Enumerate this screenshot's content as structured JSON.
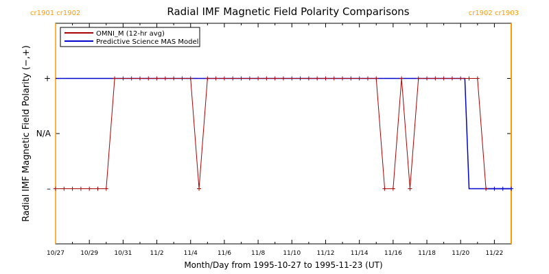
{
  "chart_data": {
    "type": "line",
    "title": "Radial IMF Magnetic Field Polarity Comparisons",
    "xlabel": "Month/Day from 1995-10-27 to 1995-11-23 (UT)",
    "ylabel": "Radial IMF Magnetic Field Polarity (−,+)",
    "x_start_date": "1995-10-27",
    "xlim_days": [
      0,
      27
    ],
    "x_tick_labels": [
      "10/27",
      "10/29",
      "10/31",
      "11/2",
      "11/4",
      "11/6",
      "11/8",
      "11/10",
      "11/12",
      "11/14",
      "11/16",
      "11/18",
      "11/20",
      "11/22"
    ],
    "y_tick_labels": [
      {
        "label": "+",
        "value": 1
      },
      {
        "label": "N/A",
        "value": 0
      },
      {
        "label": "–",
        "value": -1
      }
    ],
    "ylim": [
      -2,
      2
    ],
    "carrington_markers": [
      {
        "left_label": "cr1901",
        "right_label": "cr1902",
        "day": 0.0,
        "color": "#ff9900"
      },
      {
        "left_label": "cr1902",
        "right_label": "cr1903",
        "day": 27.0,
        "color": "#ff9900"
      }
    ],
    "legend_position": "top-left",
    "series": [
      {
        "name": "OMNI_M (12-hr avg)",
        "color": "#aa0000",
        "markers": true,
        "points": [
          [
            0.0,
            -1
          ],
          [
            0.5,
            -1
          ],
          [
            1.0,
            -1
          ],
          [
            1.5,
            -1
          ],
          [
            2.0,
            -1
          ],
          [
            2.5,
            -1
          ],
          [
            3.0,
            -1
          ],
          [
            3.5,
            1
          ],
          [
            4.0,
            1
          ],
          [
            4.5,
            1
          ],
          [
            5.0,
            1
          ],
          [
            5.5,
            1
          ],
          [
            6.0,
            1
          ],
          [
            6.5,
            1
          ],
          [
            7.0,
            1
          ],
          [
            7.5,
            1
          ],
          [
            8.0,
            1
          ],
          [
            8.5,
            -1
          ],
          [
            9.0,
            1
          ],
          [
            9.5,
            1
          ],
          [
            10.0,
            1
          ],
          [
            10.5,
            1
          ],
          [
            11.0,
            1
          ],
          [
            11.5,
            1
          ],
          [
            12.0,
            1
          ],
          [
            12.5,
            1
          ],
          [
            13.0,
            1
          ],
          [
            13.5,
            1
          ],
          [
            14.0,
            1
          ],
          [
            14.5,
            1
          ],
          [
            15.0,
            1
          ],
          [
            15.5,
            1
          ],
          [
            16.0,
            1
          ],
          [
            16.5,
            1
          ],
          [
            17.0,
            1
          ],
          [
            17.5,
            1
          ],
          [
            18.0,
            1
          ],
          [
            18.5,
            1
          ],
          [
            19.0,
            1
          ],
          [
            19.5,
            -1
          ],
          [
            20.0,
            -1
          ],
          [
            20.5,
            1
          ],
          [
            21.0,
            -1
          ],
          [
            21.5,
            1
          ],
          [
            22.0,
            1
          ],
          [
            22.5,
            1
          ],
          [
            23.0,
            1
          ],
          [
            23.5,
            1
          ],
          [
            24.0,
            1
          ],
          [
            24.5,
            1
          ],
          [
            25.0,
            1
          ],
          [
            25.5,
            -1
          ]
        ]
      },
      {
        "name": "Predictive Science MAS Model",
        "color": "#0000cc",
        "markers": false,
        "points": [
          [
            0.0,
            1
          ],
          [
            24.25,
            1
          ],
          [
            24.5,
            -1
          ],
          [
            27.0,
            -1
          ]
        ]
      },
      {
        "name": "",
        "color": "#0000cc",
        "markers": true,
        "points": [
          [
            25.5,
            -1
          ],
          [
            26.0,
            -1
          ],
          [
            26.5,
            -1
          ],
          [
            27.0,
            -1
          ]
        ]
      }
    ]
  }
}
